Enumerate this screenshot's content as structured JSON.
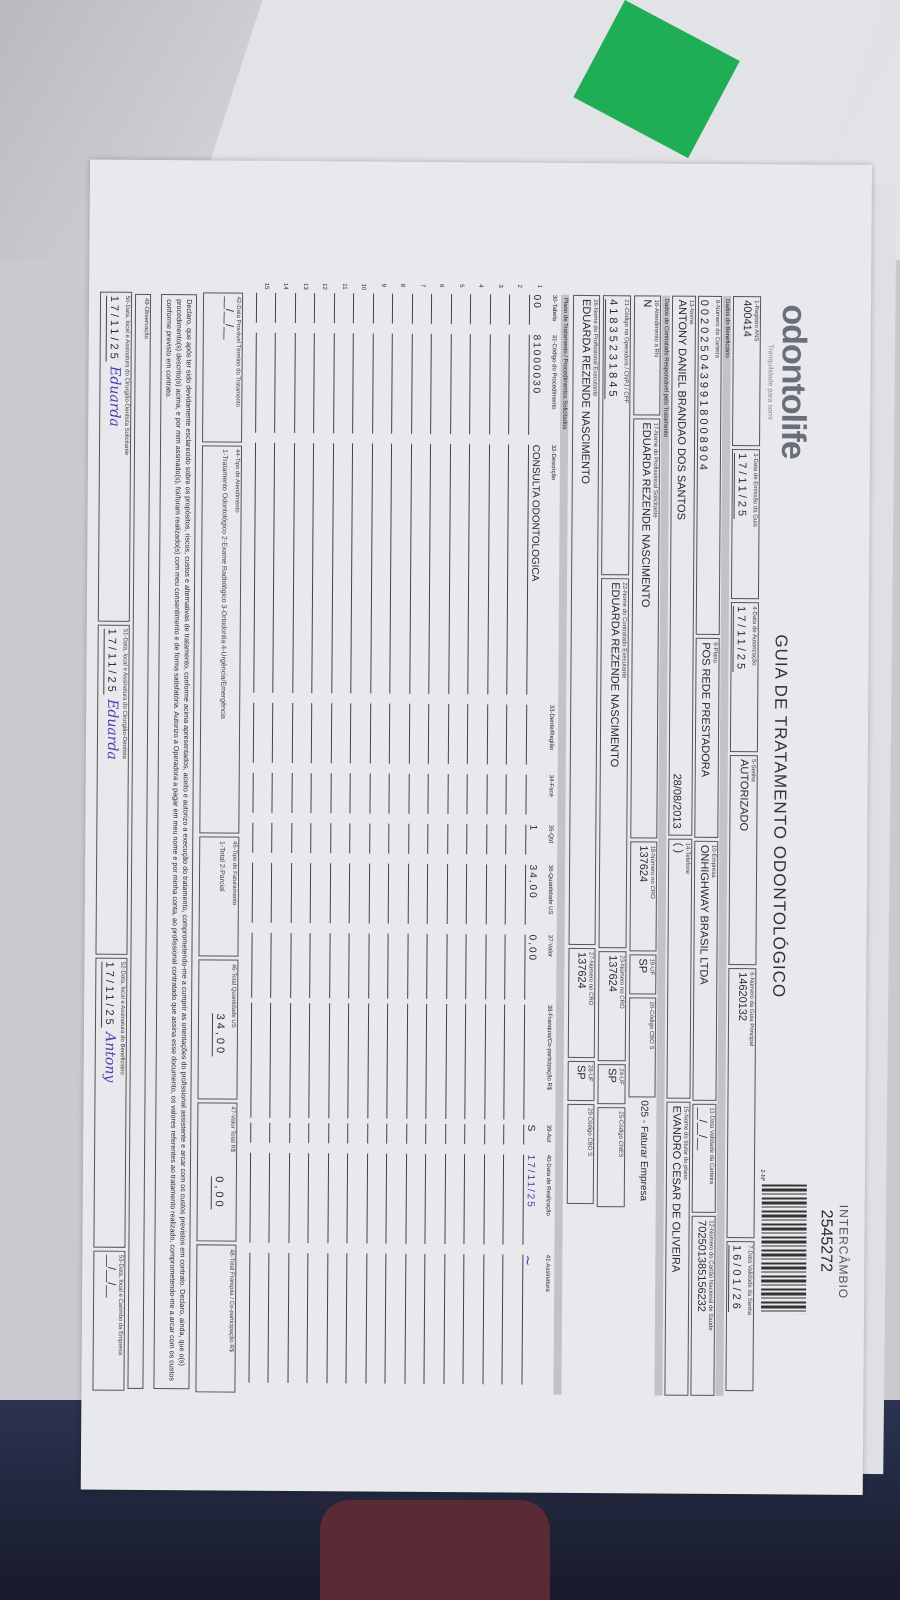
{
  "document": {
    "logo_text": "odontolife",
    "logo_tagline": "Tranquilidade para sorrir",
    "title": "GUIA DE TRATAMENTO ODONTOLÓGICO",
    "barcode_number": "2545272",
    "barcode_label": "INTERCÂMBIO",
    "page_indicator": "2-Nº"
  },
  "header": {
    "registro_ans": {
      "label": "1-Registro ANS",
      "value": "400414"
    },
    "data_emissao": {
      "label": "3-Data de Emissão da Guia",
      "value": "17/11/25"
    },
    "data_autorizacao": {
      "label": "4-Data de Autorização",
      "value": "17/11/25"
    },
    "senha": {
      "label": "5-Senha",
      "value": "AUTORIZADO"
    },
    "guia_principal": {
      "label": "6-Número da Guia Principal",
      "value": "14620132"
    },
    "validade_senha": {
      "label": "7-Data Validade da Senha",
      "value": "16/01/26"
    }
  },
  "beneficiario": {
    "section": "Dados do Beneficiário",
    "carteira": {
      "label": "8-Número da Carteira",
      "value": "0020250439918008904"
    },
    "plano": {
      "label": "9-Plano",
      "value": "POS REDE PRESTADORA"
    },
    "empresa": {
      "label": "10-Empresa",
      "value": "ONHIGHWAY BRASIL LTDA"
    },
    "validade_carteira": {
      "label": "11-Data Validade da Carteira",
      "value": "__/__/__"
    },
    "cns": {
      "label": "12-Número do Cartão Nacional de Saúde",
      "value": "702501385156232"
    },
    "nome": {
      "label": "13-Nome",
      "value": "ANTONY DANIEL BRANDAO DOS SANTOS"
    },
    "nascimento": "28/08/2013",
    "telefone": {
      "label": "14-Telefone",
      "value": "(  )"
    },
    "titular": {
      "label": "15-Nome do titular do plano",
      "value": "EVANDRO CESAR DE OLIVEIRA"
    }
  },
  "contratado": {
    "section": "Dados do Contratado Responsável pelo Tratamento",
    "rn": {
      "label": "16-Atendimento a RN",
      "value": "N"
    },
    "solicitante": {
      "label": "17-Nome do Profissional Solicitante",
      "value": "EDUARDA REZENDE NASCIMENTO"
    },
    "cro_solicitante": {
      "label": "18-Número no CRO",
      "value": "137624"
    },
    "uf_solicitante": {
      "label": "19-UF",
      "value": "SP"
    },
    "cbo_solicitante": {
      "label": "20-Código CBO S",
      "value": ""
    },
    "note": "025 - Faturar Empresa",
    "codigo_operadora": {
      "label": "21-Código na Operadora / CNPJ / CPF",
      "value": "41835231845"
    },
    "executante_contratado": {
      "label": "22-Nome do Contratado Executante",
      "value": "EDUARDA REZENDE NASCIMENTO"
    },
    "cro_contratado": {
      "label": "23-Número no CRO",
      "value": "137624"
    },
    "uf_contratado": {
      "label": "24-UF",
      "value": "SP"
    },
    "cnes": {
      "label": "25-Código CNES",
      "value": ""
    },
    "profissional_executante": {
      "label": "26-Nome do Profissional Executante",
      "value": "EDUARDA REZENDE NASCIMENTO"
    },
    "cro_executante": {
      "label": "27-Número no CRO",
      "value": "137624"
    },
    "uf_executante": {
      "label": "28-UF",
      "value": "SP"
    },
    "cbo_executante": {
      "label": "29-Código CBO S",
      "value": ""
    }
  },
  "procedimentos": {
    "section": "Plano de Tratamento / Procedimentos Solicitados",
    "columns": [
      "30-Tabela",
      "31-Código do Procedimento",
      "32-Descrição",
      "33-Dente/Região",
      "34-Face",
      "35-Qtd",
      "36-Quantidade US",
      "37-Valor",
      "38-Franquia/Co-participação R$",
      "39-Aut",
      "40-Data de Realização",
      "41-Assinatura"
    ],
    "rows": [
      {
        "n": "1",
        "tabela": "00",
        "codigo": "81000030",
        "descricao": "CONSULTA ODONTOLOGICA",
        "dente": "",
        "face": "",
        "qtd": "1",
        "us": "34,00",
        "valor": "0,00",
        "franquia": "",
        "aut": "S",
        "data": "17/11/25"
      },
      {
        "n": "2"
      },
      {
        "n": "3"
      },
      {
        "n": "4"
      },
      {
        "n": "5"
      },
      {
        "n": "6"
      },
      {
        "n": "7"
      },
      {
        "n": "8"
      },
      {
        "n": "9"
      },
      {
        "n": "10"
      },
      {
        "n": "11"
      },
      {
        "n": "12"
      },
      {
        "n": "13"
      },
      {
        "n": "14"
      },
      {
        "n": "15"
      }
    ]
  },
  "totais": {
    "termino": {
      "label": "42-Data Provável Término do Tratamento",
      "value": "__/__/__"
    },
    "tipo_atendimento": {
      "label": "44-Tipo de Atendimento",
      "value": "1-Tratamento Odontológico 2-Exame Radiológico 3-Ortodontia 4-Urgência/Emergência"
    },
    "tipo_faturamento": {
      "label": "45-Tipo de Faturamento",
      "value": "1-Total 2-Parcial"
    },
    "total_us": {
      "label": "46-Total Quantidade US",
      "value": "34,00"
    },
    "valor_total": {
      "label": "47-Valor Total R$",
      "value": "0,00"
    },
    "total_franquia": {
      "label": "48-Total Franquia / Co-participação R$",
      "value": ""
    }
  },
  "declaracao": "Declaro, que após ter sido devidamente esclarecido sobre os propósitos, riscos, custos e alternativas de tratamento, conforme acima apresentados, aceito e autorizo a execução do tratamento, comprometendo-me a cumprir as orientações do profissional assistente e arcar com os custos previstos em contrato. Declaro, ainda, que o(s) procedimento(s) descrito(s) acima, e por mim assinado(s), foi/foram realizado(s) com meu consentimento e de forma satisfatória. Autorizo a Operadora a pagar em meu nome e por minha conta, ao profissional contratado que assina esse documento, os valores referentes ao tratamento realizado, comprometendo-me a arcar com os custos conforme previsto em contrato.",
  "observacao_label": "49-Observação",
  "assinaturas": {
    "solicitante": {
      "label": "50-Data, local e Assinatura do Cirurgião-Dentista Solicitante",
      "date": "17/11/25",
      "signature": "Eduarda"
    },
    "dentista": {
      "label": "51-Data, local e Assinatura do Cirurgião-Dentista",
      "date": "17/11/25",
      "signature": "Eduarda"
    },
    "beneficiario": {
      "label": "52-Data, local e Assinatura do Beneficiário",
      "date": "17/11/25",
      "signature": "Antony"
    },
    "empresa": {
      "label": "53-Data, local e Carimbo da Empresa",
      "date": "__/__/__"
    }
  }
}
